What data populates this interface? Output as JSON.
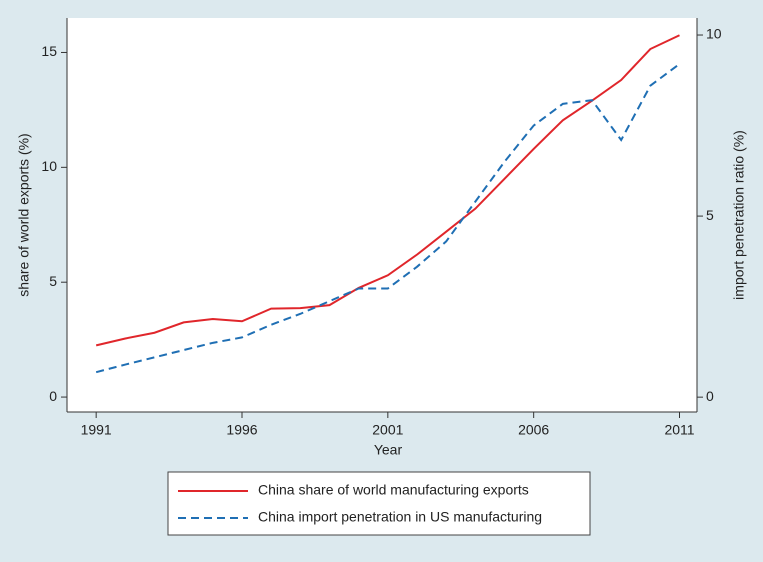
{
  "chart_data": {
    "type": "line",
    "x": [
      1991,
      1992,
      1993,
      1994,
      1995,
      1996,
      1997,
      1998,
      1999,
      2000,
      2001,
      2002,
      2003,
      2004,
      2005,
      2006,
      2007,
      2008,
      2009,
      2010,
      2011
    ],
    "series": [
      {
        "name": "China share of world manufacturing exports",
        "color": "#e0262b",
        "dash": "solid",
        "values": [
          2.25,
          2.55,
          2.8,
          3.25,
          3.4,
          3.3,
          3.85,
          3.87,
          4.0,
          4.75,
          5.3,
          6.2,
          7.2,
          8.2,
          9.5,
          10.8,
          12.05,
          12.9,
          13.8,
          15.15,
          15.75
        ]
      },
      {
        "name": "China import penetration in US manufacturing",
        "color": "#1f6fb4",
        "dash": "dashed",
        "axis": "y2",
        "values": [
          0.69,
          0.9,
          1.1,
          1.3,
          1.5,
          1.65,
          2.0,
          2.3,
          2.65,
          3.0,
          3.0,
          3.6,
          4.3,
          5.4,
          6.5,
          7.5,
          8.1,
          8.2,
          7.1,
          8.6,
          9.2
        ]
      }
    ],
    "xlabel": "Year",
    "ylabel": "share of world exports (%)",
    "y2label": "import penetration ratio (%)",
    "xlim": [
      1990,
      2011.6
    ],
    "xticks": [
      1991,
      1996,
      2001,
      2006,
      2011
    ],
    "ylim": [
      -0.65,
      16.5
    ],
    "yticks": [
      0,
      5,
      10,
      15
    ],
    "y2lim": [
      -0.41,
      10.47
    ],
    "y2ticks": [
      0,
      5,
      10
    ]
  }
}
